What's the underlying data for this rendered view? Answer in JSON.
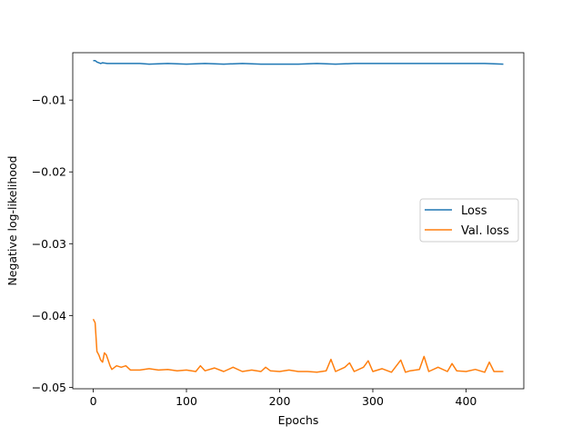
{
  "chart_data": {
    "type": "line",
    "title": "",
    "xlabel": "Epochs",
    "ylabel": "Negative log-likelihood",
    "xlim": [
      -22,
      462
    ],
    "ylim": [
      -0.0502,
      -0.0034
    ],
    "xticks": [
      0,
      100,
      200,
      300,
      400
    ],
    "xtick_labels": [
      "0",
      "100",
      "200",
      "300",
      "400"
    ],
    "yticks": [
      -0.01,
      -0.02,
      -0.03,
      -0.04,
      -0.05
    ],
    "ytick_labels": [
      "−0.01",
      "−0.02",
      "−0.03",
      "−0.04",
      "−0.05"
    ],
    "grid": false,
    "legend_position": "center-right",
    "series": [
      {
        "name": "Loss",
        "color": "#1f77b4",
        "x": [
          0,
          2,
          4,
          6,
          8,
          10,
          15,
          20,
          30,
          40,
          50,
          60,
          80,
          100,
          120,
          140,
          160,
          180,
          200,
          220,
          240,
          260,
          280,
          300,
          320,
          340,
          360,
          380,
          400,
          420,
          440
        ],
        "y": [
          -0.0045,
          -0.0045,
          -0.0047,
          -0.0048,
          -0.0049,
          -0.0048,
          -0.0049,
          -0.0049,
          -0.0049,
          -0.0049,
          -0.0049,
          -0.005,
          -0.0049,
          -0.005,
          -0.0049,
          -0.005,
          -0.0049,
          -0.005,
          -0.005,
          -0.005,
          -0.0049,
          -0.005,
          -0.0049,
          -0.0049,
          -0.0049,
          -0.0049,
          -0.0049,
          -0.0049,
          -0.0049,
          -0.0049,
          -0.005
        ]
      },
      {
        "name": "Val. loss",
        "color": "#ff7f0e",
        "x": [
          0,
          2,
          4,
          6,
          8,
          10,
          12,
          14,
          16,
          18,
          20,
          25,
          30,
          35,
          40,
          50,
          60,
          70,
          80,
          90,
          100,
          110,
          115,
          120,
          130,
          140,
          150,
          160,
          170,
          180,
          185,
          190,
          200,
          210,
          220,
          230,
          240,
          250,
          255,
          260,
          270,
          275,
          280,
          290,
          295,
          300,
          310,
          320,
          330,
          335,
          340,
          350,
          355,
          360,
          370,
          380,
          385,
          390,
          400,
          410,
          420,
          425,
          430,
          440
        ],
        "y": [
          -0.0405,
          -0.041,
          -0.045,
          -0.0455,
          -0.0462,
          -0.0465,
          -0.0452,
          -0.0455,
          -0.0462,
          -0.047,
          -0.0475,
          -0.047,
          -0.0472,
          -0.047,
          -0.0476,
          -0.0476,
          -0.0474,
          -0.0476,
          -0.0475,
          -0.0477,
          -0.0476,
          -0.0478,
          -0.047,
          -0.0477,
          -0.0473,
          -0.0478,
          -0.0472,
          -0.0478,
          -0.0476,
          -0.0478,
          -0.0472,
          -0.0477,
          -0.0478,
          -0.0476,
          -0.0478,
          -0.0478,
          -0.0479,
          -0.0477,
          -0.0461,
          -0.0478,
          -0.0472,
          -0.0466,
          -0.0478,
          -0.0472,
          -0.0463,
          -0.0478,
          -0.0474,
          -0.0479,
          -0.0462,
          -0.0479,
          -0.0477,
          -0.0475,
          -0.0457,
          -0.0478,
          -0.0472,
          -0.0478,
          -0.0467,
          -0.0477,
          -0.0478,
          -0.0475,
          -0.0479,
          -0.0465,
          -0.0478,
          -0.0478
        ]
      }
    ]
  }
}
